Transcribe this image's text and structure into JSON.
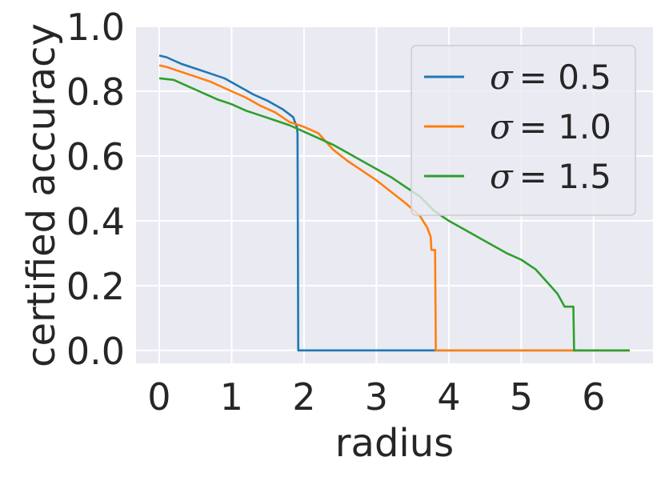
{
  "chart_data": {
    "type": "line",
    "xlabel": "radius",
    "ylabel": "certified accuracy",
    "xlim": [
      -0.32,
      6.82
    ],
    "ylim": [
      -0.04,
      1.0
    ],
    "xticks": [
      0,
      1,
      2,
      3,
      4,
      5,
      6
    ],
    "xtick_labels": [
      "0",
      "1",
      "2",
      "3",
      "4",
      "5",
      "6"
    ],
    "yticks": [
      0.0,
      0.2,
      0.4,
      0.6,
      0.8,
      1.0
    ],
    "ytick_labels": [
      "0.0",
      "0.2",
      "0.4",
      "0.6",
      "0.8",
      "1.0"
    ],
    "grid": true,
    "legend_position": "top-right",
    "background": "#eaeaf2",
    "series": [
      {
        "name": "σ = 0.5",
        "legend_prefix": "σ",
        "legend_value": "= 0.5",
        "color": "#1f77b4",
        "x": [
          0,
          0.1,
          0.3,
          0.5,
          0.7,
          0.9,
          1.1,
          1.3,
          1.5,
          1.7,
          1.85,
          1.9,
          1.91,
          1.92,
          1.93,
          6.5
        ],
        "y": [
          0.91,
          0.905,
          0.885,
          0.87,
          0.855,
          0.84,
          0.815,
          0.79,
          0.77,
          0.745,
          0.72,
          0.69,
          0.67,
          0.0,
          0.0,
          0.0
        ]
      },
      {
        "name": "σ = 1.0",
        "legend_prefix": "σ",
        "legend_value": "= 1.0",
        "color": "#ff7f0e",
        "x": [
          0,
          0.1,
          0.3,
          0.5,
          0.7,
          1.0,
          1.2,
          1.4,
          1.6,
          1.8,
          2.0,
          2.2,
          2.4,
          2.6,
          2.8,
          3.0,
          3.2,
          3.4,
          3.6,
          3.7,
          3.75,
          3.76,
          3.81,
          3.82,
          3.83,
          6.5
        ],
        "y": [
          0.88,
          0.875,
          0.86,
          0.845,
          0.83,
          0.8,
          0.78,
          0.755,
          0.735,
          0.705,
          0.69,
          0.67,
          0.62,
          0.585,
          0.555,
          0.525,
          0.49,
          0.455,
          0.415,
          0.38,
          0.35,
          0.31,
          0.31,
          0.0,
          0.0,
          0.0
        ]
      },
      {
        "name": "σ = 1.5",
        "legend_prefix": "σ",
        "legend_value": "= 1.5",
        "color": "#2ca02c",
        "x": [
          0,
          0.2,
          0.4,
          0.6,
          0.8,
          1.0,
          1.2,
          1.4,
          1.6,
          1.8,
          2.0,
          2.2,
          2.4,
          2.6,
          2.8,
          3.0,
          3.2,
          3.4,
          3.6,
          3.8,
          4.0,
          4.2,
          4.4,
          4.6,
          4.8,
          5.0,
          5.2,
          5.4,
          5.5,
          5.6,
          5.7,
          5.72,
          5.73,
          6.5
        ],
        "y": [
          0.84,
          0.835,
          0.815,
          0.795,
          0.775,
          0.76,
          0.74,
          0.725,
          0.71,
          0.695,
          0.675,
          0.655,
          0.635,
          0.61,
          0.585,
          0.56,
          0.535,
          0.505,
          0.475,
          0.43,
          0.4,
          0.375,
          0.35,
          0.325,
          0.3,
          0.28,
          0.25,
          0.2,
          0.175,
          0.135,
          0.135,
          0.135,
          0.0,
          0.0
        ]
      }
    ]
  }
}
